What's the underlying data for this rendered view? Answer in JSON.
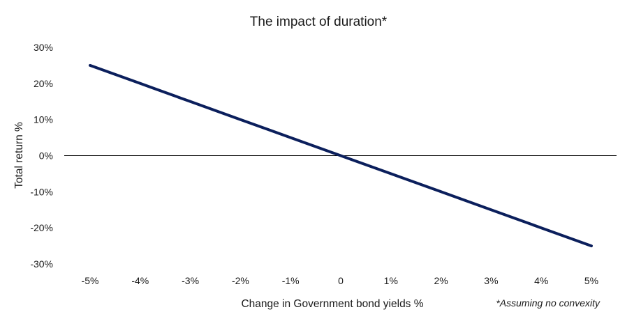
{
  "chart_data": {
    "type": "line",
    "title": "The impact of duration*",
    "xlabel": "Change in Government bond yields %",
    "ylabel": "Total return %",
    "footnote": "*Assuming no convexity",
    "x": [
      -5,
      -4,
      -3,
      -2,
      -1,
      0,
      1,
      2,
      3,
      4,
      5
    ],
    "x_tick_labels": [
      "-5%",
      "-4%",
      "-3%",
      "-2%",
      "-1%",
      "0",
      "1%",
      "2%",
      "3%",
      "4%",
      "5%"
    ],
    "y_ticks": [
      30,
      20,
      10,
      0,
      -10,
      -20,
      -30
    ],
    "y_tick_labels": [
      "30%",
      "20%",
      "10%",
      "0%",
      "-10%",
      "-20%",
      "-30%"
    ],
    "ylim": [
      -30,
      30
    ],
    "xlim": [
      -5,
      5
    ],
    "grid": false,
    "series": [
      {
        "values": [
          25,
          20,
          15,
          10,
          5,
          0,
          -5,
          -10,
          -15,
          -20,
          -25
        ],
        "color": "#0b1f5c"
      }
    ],
    "zero_line_color": "#000000"
  }
}
